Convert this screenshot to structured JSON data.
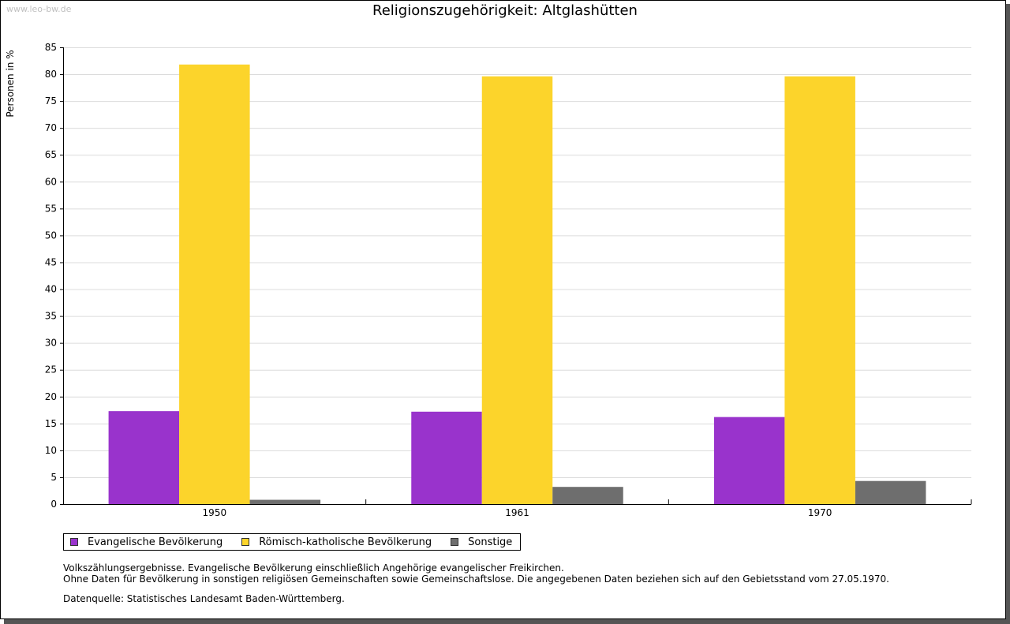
{
  "watermark": "www.leo-bw.de",
  "chart_data": {
    "type": "bar",
    "title": "Religionszugehörigkeit: Altglashütten",
    "xlabel": "",
    "ylabel": "Personen in %",
    "categories": [
      "1950",
      "1961",
      "1970"
    ],
    "series": [
      {
        "name": "Evangelische Bevölkerung",
        "color": "#9933cc",
        "values": [
          17.3,
          17.2,
          16.2
        ]
      },
      {
        "name": "Römisch-katholische Bevölkerung",
        "color": "#fcd42b",
        "values": [
          81.8,
          79.6,
          79.6
        ]
      },
      {
        "name": "Sonstige",
        "color": "#6e6e6e",
        "values": [
          0.8,
          3.2,
          4.3
        ]
      }
    ],
    "ylim": [
      0,
      85
    ],
    "yticks": [
      0,
      5,
      10,
      15,
      20,
      25,
      30,
      35,
      40,
      45,
      50,
      55,
      60,
      65,
      70,
      75,
      80,
      85
    ],
    "grid": true,
    "legend": "bottom-left"
  },
  "notes": [
    "Volkszählungsergebnisse. Evangelische Bevölkerung einschließlich Angehörige evangelischer Freikirchen.",
    "Ohne Daten für Bevölkerung in sonstigen religiösen Gemeinschaften sowie Gemeinschaftslose. Die angegebenen Daten beziehen sich auf den Gebietsstand vom 27.05.1970."
  ],
  "source": "Datenquelle: Statistisches Landesamt Baden-Württemberg."
}
